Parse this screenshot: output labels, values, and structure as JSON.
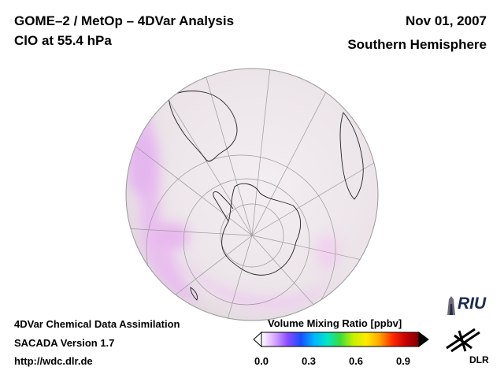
{
  "header": {
    "title_line1": "GOME–2 / MetOp – 4DVar Analysis",
    "title_line2": "ClO at 55.4 hPa",
    "date": "Nov 01, 2007",
    "hemisphere": "Southern Hemisphere"
  },
  "footer": {
    "line1": "4DVar Chemical Data Assimilation",
    "line2": "SACADA Version 1.7",
    "line3": "http://wdc.dlr.de"
  },
  "colorbar": {
    "title": "Volume Mixing Ratio [ppbv]",
    "ticks": [
      "0.0",
      "0.3",
      "0.6",
      "0.9"
    ],
    "tick_values": [
      0.0,
      0.3,
      0.6,
      0.9
    ],
    "range": [
      0.0,
      1.0
    ],
    "colors": [
      "#ffffff",
      "#d9a8ff",
      "#8a4dff",
      "#1a4dff",
      "#00b4ff",
      "#00e6c8",
      "#3cdc3c",
      "#c8f000",
      "#ffeb00",
      "#ffa500",
      "#ff2a00",
      "#c80000",
      "#800000"
    ]
  },
  "logos": {
    "riu": "RIU",
    "dlr": "DLR"
  },
  "map": {
    "projection": "orthographic",
    "ocean_color": "#efe9ec",
    "feature_color": "#f0c8ee"
  }
}
